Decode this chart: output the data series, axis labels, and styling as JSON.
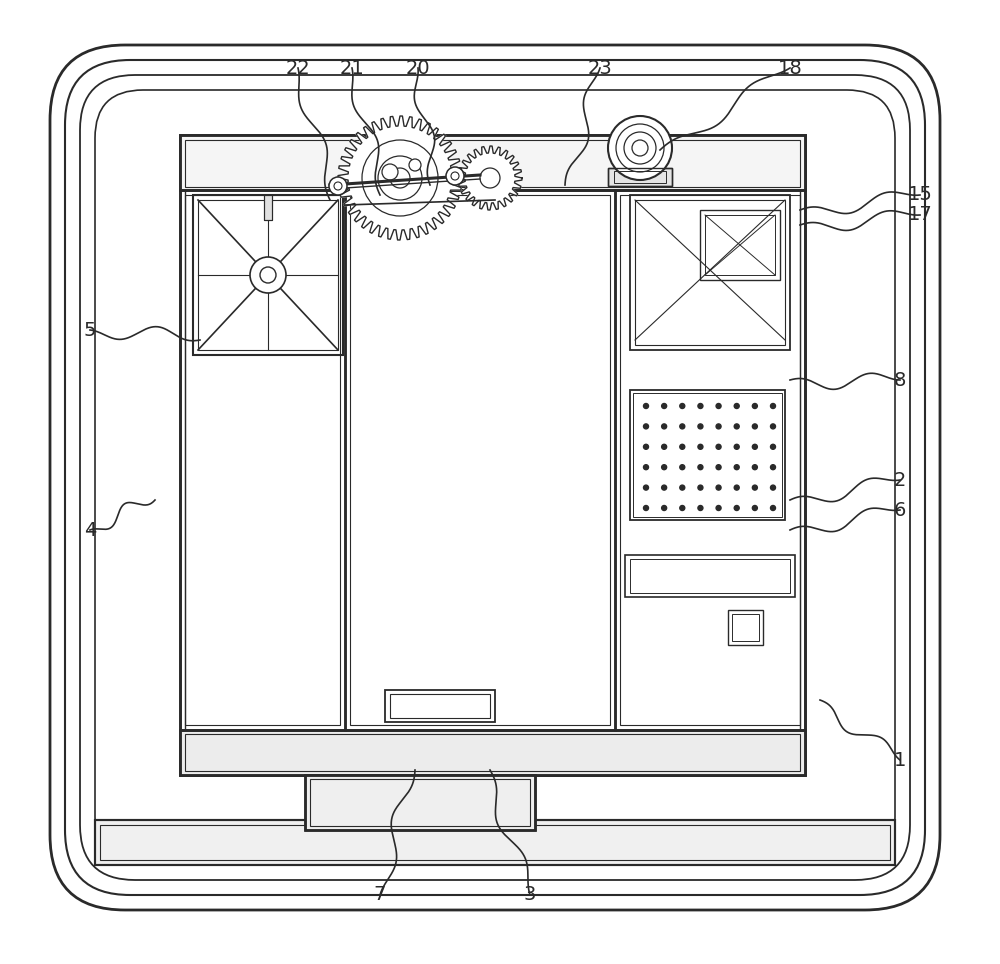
{
  "bg_color": "#ffffff",
  "line_color": "#2a2a2a",
  "annotations": [
    [
      "22",
      298,
      68,
      330,
      200
    ],
    [
      "21",
      352,
      68,
      380,
      195
    ],
    [
      "20",
      418,
      68,
      430,
      185
    ],
    [
      "23",
      600,
      68,
      565,
      185
    ],
    [
      "18",
      790,
      68,
      660,
      150
    ],
    [
      "15",
      920,
      195,
      800,
      210
    ],
    [
      "17",
      920,
      215,
      800,
      225
    ],
    [
      "8",
      900,
      380,
      790,
      380
    ],
    [
      "2",
      900,
      480,
      790,
      500
    ],
    [
      "6",
      900,
      510,
      790,
      530
    ],
    [
      "1",
      900,
      760,
      820,
      700
    ],
    [
      "5",
      90,
      330,
      200,
      340
    ],
    [
      "4",
      90,
      530,
      155,
      500
    ],
    [
      "7",
      380,
      895,
      415,
      770
    ],
    [
      "3",
      530,
      895,
      490,
      770
    ]
  ]
}
